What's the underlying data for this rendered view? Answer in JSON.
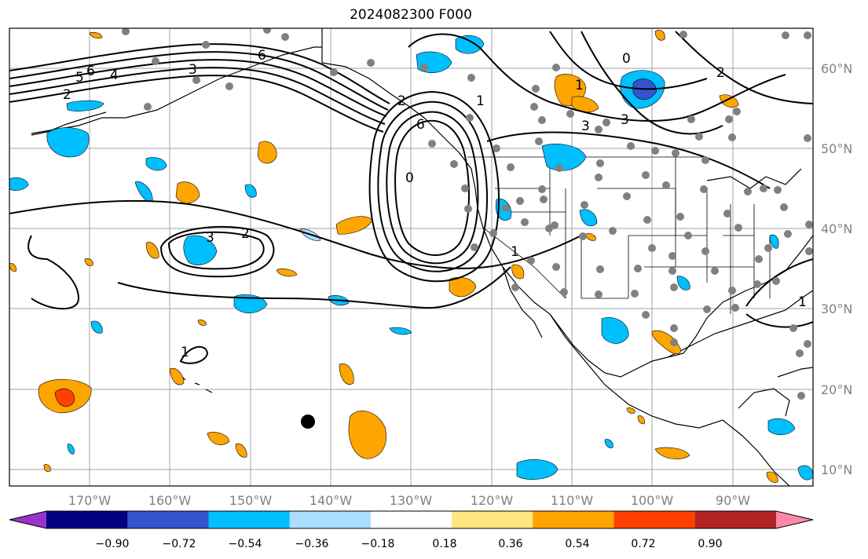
{
  "title": "2024082300 F000",
  "latitude_labels": [
    "60°N",
    "50°N",
    "40°N",
    "30°N",
    "20°N",
    "10°N"
  ],
  "longitude_labels": [
    "170°W",
    "160°W",
    "150°W",
    "140°W",
    "130°W",
    "120°W",
    "110°W",
    "100°W",
    "90°W"
  ],
  "colorbar": {
    "tick_labels": [
      "−0.90",
      "−0.72",
      "−0.54",
      "−0.36",
      "−0.18",
      "0.18",
      "0.36",
      "0.54",
      "0.72",
      "0.90"
    ],
    "colors": [
      "#9933cc",
      "#000080",
      "#3355cc",
      "#00bfff",
      "#aaddff",
      "#ffffff",
      "#ffe680",
      "#ffa500",
      "#ff4000",
      "#b22222",
      "#ff88aa"
    ]
  },
  "contour_labels": [
    "6",
    "5",
    "4",
    "3",
    "2",
    "6",
    "3",
    "2",
    "1",
    "0",
    "0",
    "1",
    "2",
    "3",
    "6",
    "1",
    "3",
    "2",
    "1",
    "1"
  ],
  "colors": {
    "land_outline": "#000000",
    "grid": "#999999",
    "station_dot": "#808080"
  }
}
